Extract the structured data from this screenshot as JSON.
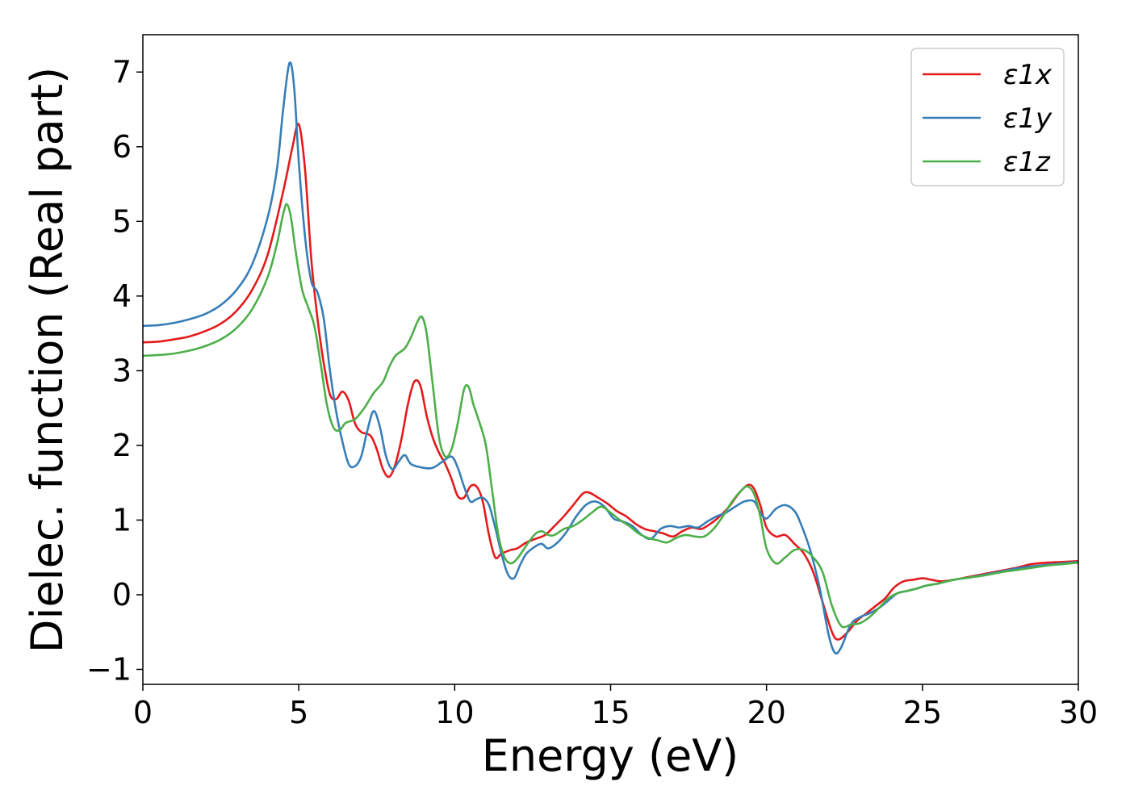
{
  "chart_data": {
    "type": "line",
    "xlabel": "Energy (eV)",
    "ylabel": "Dielec. function (Real part)",
    "xlim": [
      0,
      30
    ],
    "ylim": [
      -1.2,
      7.5
    ],
    "xticks": [
      0,
      5,
      10,
      15,
      20,
      25,
      30
    ],
    "yticks": [
      -1,
      0,
      1,
      2,
      3,
      4,
      5,
      6,
      7
    ],
    "ytick_labels": [
      "−1",
      "0",
      "1",
      "2",
      "3",
      "4",
      "5",
      "6",
      "7"
    ],
    "grid": false,
    "legend_position": "top-right",
    "series": [
      {
        "name": "ε1x",
        "color": "#e41a1c",
        "points": [
          [
            0,
            3.38
          ],
          [
            0.5,
            3.39
          ],
          [
            1,
            3.42
          ],
          [
            1.5,
            3.46
          ],
          [
            2,
            3.53
          ],
          [
            2.5,
            3.63
          ],
          [
            3,
            3.8
          ],
          [
            3.5,
            4.08
          ],
          [
            4,
            4.55
          ],
          [
            4.5,
            5.4
          ],
          [
            4.8,
            6.0
          ],
          [
            5.0,
            6.3
          ],
          [
            5.2,
            5.7
          ],
          [
            5.4,
            4.5
          ],
          [
            5.6,
            3.7
          ],
          [
            5.8,
            3.1
          ],
          [
            6.0,
            2.68
          ],
          [
            6.2,
            2.62
          ],
          [
            6.4,
            2.72
          ],
          [
            6.6,
            2.6
          ],
          [
            6.8,
            2.3
          ],
          [
            7.0,
            2.18
          ],
          [
            7.3,
            2.13
          ],
          [
            7.5,
            1.95
          ],
          [
            7.7,
            1.68
          ],
          [
            7.9,
            1.58
          ],
          [
            8.1,
            1.75
          ],
          [
            8.3,
            2.1
          ],
          [
            8.5,
            2.55
          ],
          [
            8.7,
            2.85
          ],
          [
            8.9,
            2.8
          ],
          [
            9.1,
            2.4
          ],
          [
            9.3,
            2.1
          ],
          [
            9.5,
            1.9
          ],
          [
            9.7,
            1.75
          ],
          [
            9.9,
            1.55
          ],
          [
            10.1,
            1.32
          ],
          [
            10.3,
            1.3
          ],
          [
            10.5,
            1.45
          ],
          [
            10.7,
            1.45
          ],
          [
            10.9,
            1.25
          ],
          [
            11.1,
            0.8
          ],
          [
            11.3,
            0.5
          ],
          [
            11.5,
            0.55
          ],
          [
            11.8,
            0.6
          ],
          [
            12.0,
            0.62
          ],
          [
            12.3,
            0.7
          ],
          [
            12.6,
            0.75
          ],
          [
            12.9,
            0.8
          ],
          [
            13.2,
            0.92
          ],
          [
            13.5,
            1.05
          ],
          [
            13.8,
            1.2
          ],
          [
            14.1,
            1.35
          ],
          [
            14.3,
            1.37
          ],
          [
            14.6,
            1.3
          ],
          [
            14.9,
            1.22
          ],
          [
            15.2,
            1.12
          ],
          [
            15.5,
            1.05
          ],
          [
            15.8,
            0.95
          ],
          [
            16.1,
            0.88
          ],
          [
            16.4,
            0.85
          ],
          [
            16.7,
            0.82
          ],
          [
            17.0,
            0.78
          ],
          [
            17.3,
            0.85
          ],
          [
            17.6,
            0.9
          ],
          [
            17.9,
            0.88
          ],
          [
            18.2,
            0.95
          ],
          [
            18.5,
            1.05
          ],
          [
            18.8,
            1.18
          ],
          [
            19.1,
            1.35
          ],
          [
            19.4,
            1.47
          ],
          [
            19.6,
            1.42
          ],
          [
            19.8,
            1.2
          ],
          [
            20.0,
            0.9
          ],
          [
            20.3,
            0.78
          ],
          [
            20.6,
            0.8
          ],
          [
            20.9,
            0.68
          ],
          [
            21.2,
            0.55
          ],
          [
            21.5,
            0.3
          ],
          [
            21.8,
            -0.1
          ],
          [
            22.1,
            -0.5
          ],
          [
            22.3,
            -0.6
          ],
          [
            22.6,
            -0.5
          ],
          [
            22.9,
            -0.35
          ],
          [
            23.2,
            -0.25
          ],
          [
            23.5,
            -0.15
          ],
          [
            23.8,
            -0.05
          ],
          [
            24.1,
            0.1
          ],
          [
            24.4,
            0.18
          ],
          [
            24.7,
            0.2
          ],
          [
            25.0,
            0.22
          ],
          [
            25.3,
            0.2
          ],
          [
            25.6,
            0.18
          ],
          [
            26.0,
            0.2
          ],
          [
            26.5,
            0.24
          ],
          [
            27,
            0.28
          ],
          [
            27.5,
            0.32
          ],
          [
            28,
            0.36
          ],
          [
            28.5,
            0.41
          ],
          [
            29,
            0.43
          ],
          [
            29.5,
            0.44
          ],
          [
            30,
            0.45
          ]
        ]
      },
      {
        "name": "ε1y",
        "color": "#377eb8",
        "points": [
          [
            0,
            3.6
          ],
          [
            0.5,
            3.61
          ],
          [
            1,
            3.64
          ],
          [
            1.5,
            3.69
          ],
          [
            2,
            3.76
          ],
          [
            2.5,
            3.88
          ],
          [
            3,
            4.08
          ],
          [
            3.5,
            4.42
          ],
          [
            4,
            5.05
          ],
          [
            4.3,
            5.7
          ],
          [
            4.5,
            6.5
          ],
          [
            4.7,
            7.12
          ],
          [
            4.85,
            6.8
          ],
          [
            5.0,
            5.8
          ],
          [
            5.2,
            4.8
          ],
          [
            5.4,
            4.2
          ],
          [
            5.6,
            4.05
          ],
          [
            5.8,
            3.7
          ],
          [
            6.0,
            3.0
          ],
          [
            6.2,
            2.45
          ],
          [
            6.4,
            2.05
          ],
          [
            6.6,
            1.75
          ],
          [
            6.8,
            1.72
          ],
          [
            7.0,
            1.85
          ],
          [
            7.2,
            2.2
          ],
          [
            7.4,
            2.46
          ],
          [
            7.6,
            2.25
          ],
          [
            7.8,
            1.85
          ],
          [
            8.0,
            1.68
          ],
          [
            8.2,
            1.78
          ],
          [
            8.4,
            1.87
          ],
          [
            8.6,
            1.75
          ],
          [
            9.0,
            1.7
          ],
          [
            9.3,
            1.7
          ],
          [
            9.6,
            1.78
          ],
          [
            9.9,
            1.85
          ],
          [
            10.1,
            1.7
          ],
          [
            10.3,
            1.45
          ],
          [
            10.5,
            1.25
          ],
          [
            10.7,
            1.28
          ],
          [
            10.9,
            1.3
          ],
          [
            11.1,
            1.2
          ],
          [
            11.3,
            0.9
          ],
          [
            11.5,
            0.55
          ],
          [
            11.7,
            0.28
          ],
          [
            11.9,
            0.22
          ],
          [
            12.1,
            0.4
          ],
          [
            12.3,
            0.55
          ],
          [
            12.6,
            0.65
          ],
          [
            12.8,
            0.68
          ],
          [
            13.0,
            0.62
          ],
          [
            13.3,
            0.7
          ],
          [
            13.6,
            0.85
          ],
          [
            13.9,
            1.05
          ],
          [
            14.2,
            1.2
          ],
          [
            14.5,
            1.25
          ],
          [
            14.8,
            1.18
          ],
          [
            15.1,
            1.02
          ],
          [
            15.4,
            0.98
          ],
          [
            15.7,
            0.92
          ],
          [
            16.0,
            0.8
          ],
          [
            16.3,
            0.75
          ],
          [
            16.6,
            0.88
          ],
          [
            16.9,
            0.92
          ],
          [
            17.2,
            0.9
          ],
          [
            17.5,
            0.92
          ],
          [
            17.8,
            0.9
          ],
          [
            18.1,
            0.98
          ],
          [
            18.4,
            1.05
          ],
          [
            18.7,
            1.1
          ],
          [
            19.0,
            1.18
          ],
          [
            19.3,
            1.25
          ],
          [
            19.6,
            1.25
          ],
          [
            19.8,
            1.1
          ],
          [
            20.0,
            1.02
          ],
          [
            20.3,
            1.15
          ],
          [
            20.6,
            1.2
          ],
          [
            20.9,
            1.12
          ],
          [
            21.1,
            0.95
          ],
          [
            21.4,
            0.6
          ],
          [
            21.7,
            0.1
          ],
          [
            22.0,
            -0.55
          ],
          [
            22.2,
            -0.78
          ],
          [
            22.4,
            -0.7
          ],
          [
            22.7,
            -0.4
          ],
          [
            23.0,
            -0.3
          ],
          [
            23.3,
            -0.25
          ],
          [
            23.6,
            -0.18
          ],
          [
            23.9,
            -0.08
          ],
          [
            24.2,
            0.02
          ],
          [
            24.5,
            0.05
          ],
          [
            24.8,
            0.08
          ],
          [
            25.1,
            0.12
          ],
          [
            25.5,
            0.15
          ],
          [
            26,
            0.2
          ],
          [
            26.5,
            0.23
          ],
          [
            27,
            0.27
          ],
          [
            27.5,
            0.31
          ],
          [
            28,
            0.35
          ],
          [
            28.5,
            0.38
          ],
          [
            29,
            0.4
          ],
          [
            29.5,
            0.42
          ],
          [
            30,
            0.44
          ]
        ]
      },
      {
        "name": "ε1z",
        "color": "#4daf4a",
        "points": [
          [
            0,
            3.2
          ],
          [
            0.5,
            3.21
          ],
          [
            1,
            3.23
          ],
          [
            1.5,
            3.27
          ],
          [
            2,
            3.33
          ],
          [
            2.5,
            3.42
          ],
          [
            3,
            3.57
          ],
          [
            3.5,
            3.82
          ],
          [
            4,
            4.25
          ],
          [
            4.3,
            4.7
          ],
          [
            4.5,
            5.1
          ],
          [
            4.62,
            5.23
          ],
          [
            4.75,
            5.05
          ],
          [
            4.9,
            4.6
          ],
          [
            5.1,
            4.1
          ],
          [
            5.3,
            3.85
          ],
          [
            5.5,
            3.6
          ],
          [
            5.7,
            3.1
          ],
          [
            5.9,
            2.55
          ],
          [
            6.1,
            2.25
          ],
          [
            6.3,
            2.2
          ],
          [
            6.5,
            2.3
          ],
          [
            6.8,
            2.35
          ],
          [
            7.1,
            2.5
          ],
          [
            7.4,
            2.7
          ],
          [
            7.7,
            2.85
          ],
          [
            7.9,
            3.05
          ],
          [
            8.1,
            3.2
          ],
          [
            8.4,
            3.3
          ],
          [
            8.6,
            3.45
          ],
          [
            8.8,
            3.65
          ],
          [
            8.95,
            3.72
          ],
          [
            9.1,
            3.5
          ],
          [
            9.3,
            2.8
          ],
          [
            9.5,
            2.1
          ],
          [
            9.7,
            1.85
          ],
          [
            9.9,
            1.95
          ],
          [
            10.1,
            2.3
          ],
          [
            10.3,
            2.75
          ],
          [
            10.45,
            2.78
          ],
          [
            10.6,
            2.55
          ],
          [
            10.8,
            2.3
          ],
          [
            11.0,
            2.0
          ],
          [
            11.2,
            1.4
          ],
          [
            11.4,
            0.8
          ],
          [
            11.6,
            0.5
          ],
          [
            11.8,
            0.42
          ],
          [
            12.0,
            0.48
          ],
          [
            12.2,
            0.6
          ],
          [
            12.4,
            0.72
          ],
          [
            12.6,
            0.82
          ],
          [
            12.8,
            0.85
          ],
          [
            13.0,
            0.8
          ],
          [
            13.2,
            0.8
          ],
          [
            13.5,
            0.88
          ],
          [
            13.8,
            0.92
          ],
          [
            14.1,
            1.0
          ],
          [
            14.4,
            1.1
          ],
          [
            14.7,
            1.18
          ],
          [
            15.0,
            1.1
          ],
          [
            15.3,
            1.0
          ],
          [
            15.6,
            0.92
          ],
          [
            15.9,
            0.82
          ],
          [
            16.2,
            0.76
          ],
          [
            16.5,
            0.73
          ],
          [
            16.8,
            0.7
          ],
          [
            17.1,
            0.76
          ],
          [
            17.4,
            0.8
          ],
          [
            17.7,
            0.78
          ],
          [
            18.0,
            0.78
          ],
          [
            18.3,
            0.88
          ],
          [
            18.6,
            1.05
          ],
          [
            18.9,
            1.25
          ],
          [
            19.2,
            1.4
          ],
          [
            19.4,
            1.45
          ],
          [
            19.6,
            1.35
          ],
          [
            19.8,
            1.05
          ],
          [
            20.0,
            0.62
          ],
          [
            20.3,
            0.42
          ],
          [
            20.6,
            0.5
          ],
          [
            20.9,
            0.6
          ],
          [
            21.2,
            0.6
          ],
          [
            21.5,
            0.5
          ],
          [
            21.8,
            0.3
          ],
          [
            22.1,
            -0.15
          ],
          [
            22.4,
            -0.42
          ],
          [
            22.7,
            -0.4
          ],
          [
            23.0,
            -0.38
          ],
          [
            23.3,
            -0.3
          ],
          [
            23.6,
            -0.18
          ],
          [
            23.9,
            -0.05
          ],
          [
            24.2,
            0.02
          ],
          [
            24.5,
            0.05
          ],
          [
            24.8,
            0.08
          ],
          [
            25.1,
            0.12
          ],
          [
            25.5,
            0.15
          ],
          [
            26,
            0.2
          ],
          [
            26.5,
            0.23
          ],
          [
            27,
            0.26
          ],
          [
            27.5,
            0.3
          ],
          [
            28,
            0.33
          ],
          [
            28.5,
            0.36
          ],
          [
            29,
            0.39
          ],
          [
            29.5,
            0.41
          ],
          [
            30,
            0.43
          ]
        ]
      }
    ]
  }
}
